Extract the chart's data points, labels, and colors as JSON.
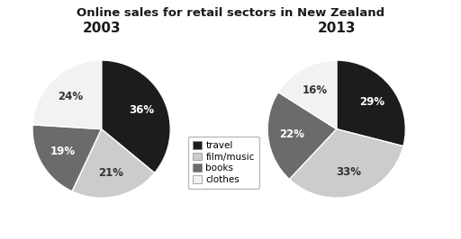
{
  "title": "Online sales for retail sectors in New Zealand",
  "year_2003": "2003",
  "year_2013": "2013",
  "categories": [
    "travel",
    "film/music",
    "books",
    "clothes"
  ],
  "colors": [
    "#1c1c1c",
    "#cccccc",
    "#6b6b6b",
    "#f2f2f2"
  ],
  "values_2003": [
    36,
    21,
    19,
    24
  ],
  "values_2013": [
    29,
    33,
    22,
    16
  ],
  "legend_labels": [
    "travel",
    "film/music",
    "books",
    "clothes"
  ],
  "bg_color": "#ffffff",
  "label_colors_2003": [
    "white",
    "#333333",
    "white",
    "#333333"
  ],
  "label_colors_2013": [
    "white",
    "#333333",
    "white",
    "#333333"
  ]
}
